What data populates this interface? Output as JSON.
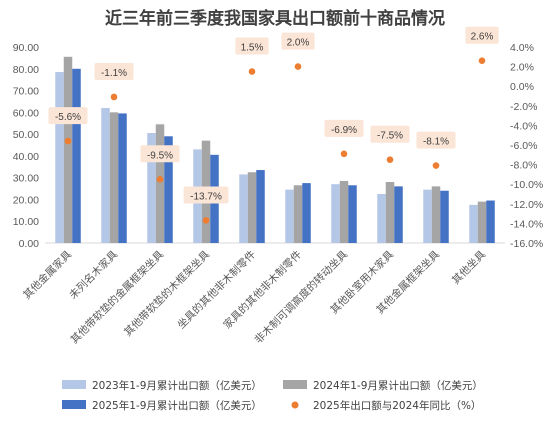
{
  "chart_data": {
    "type": "bar",
    "title": "近三年前三季度我国家具出口额前十商品情况",
    "categories": [
      "其他金属家具",
      "未列名木家具",
      "其他带软垫的金属框架坐具",
      "其他带软垫的木框架坐具",
      "坐具的其他非木制零件",
      "家具的其他非木制零件",
      "非木制可调高度的转动坐具",
      "其他卧室用木家具",
      "其他金属框架坐具",
      "其他坐具"
    ],
    "series": [
      {
        "name": "2023年1-9月累计出口额（亿美元）",
        "color": "#b4c7e7",
        "values": [
          78.5,
          62,
          50.5,
          43,
          31.5,
          24.5,
          27,
          22.5,
          24.5,
          17.5
        ]
      },
      {
        "name": "2024年1-9月累计出口额（亿美元）",
        "color": "#a5a5a5",
        "values": [
          85.5,
          60,
          54.5,
          47,
          32.5,
          26.5,
          28.5,
          28,
          26,
          19
        ]
      },
      {
        "name": "2025年1-9月累计出口额（亿美元）",
        "color": "#4472c4",
        "values": [
          80,
          59.5,
          49,
          40.5,
          33.5,
          27.5,
          26.5,
          26,
          24,
          19.5
        ]
      }
    ],
    "line_series": {
      "name": "2025年出口额与2024年同比（%）",
      "color": "#ed7d31",
      "values": [
        -5.6,
        -1.1,
        -9.5,
        -13.7,
        1.5,
        2.0,
        -6.9,
        -7.5,
        -8.1,
        2.6
      ],
      "labels": [
        "-5.6%",
        "-1.1%",
        "-9.5%",
        "-13.7%",
        "1.5%",
        "2.0%",
        "-6.9%",
        "-7.5%",
        "-8.1%",
        "2.6%"
      ]
    },
    "y_left": {
      "min": 0,
      "max": 90,
      "step": 10,
      "tick_labels": [
        "0.00",
        "10.00",
        "20.00",
        "30.00",
        "40.00",
        "50.00",
        "60.00",
        "70.00",
        "80.00",
        "90.00"
      ]
    },
    "y_right": {
      "min": -16,
      "max": 4,
      "step": 2,
      "tick_labels": [
        "-16.0%",
        "-14.0%",
        "-12.0%",
        "-10.0%",
        "-8.0%",
        "-6.0%",
        "-4.0%",
        "-2.0%",
        "0.0%",
        "2.0%",
        "4.0%"
      ]
    },
    "grid": false,
    "legend_position": "bottom",
    "label_box_color": "#fbe5d6"
  }
}
